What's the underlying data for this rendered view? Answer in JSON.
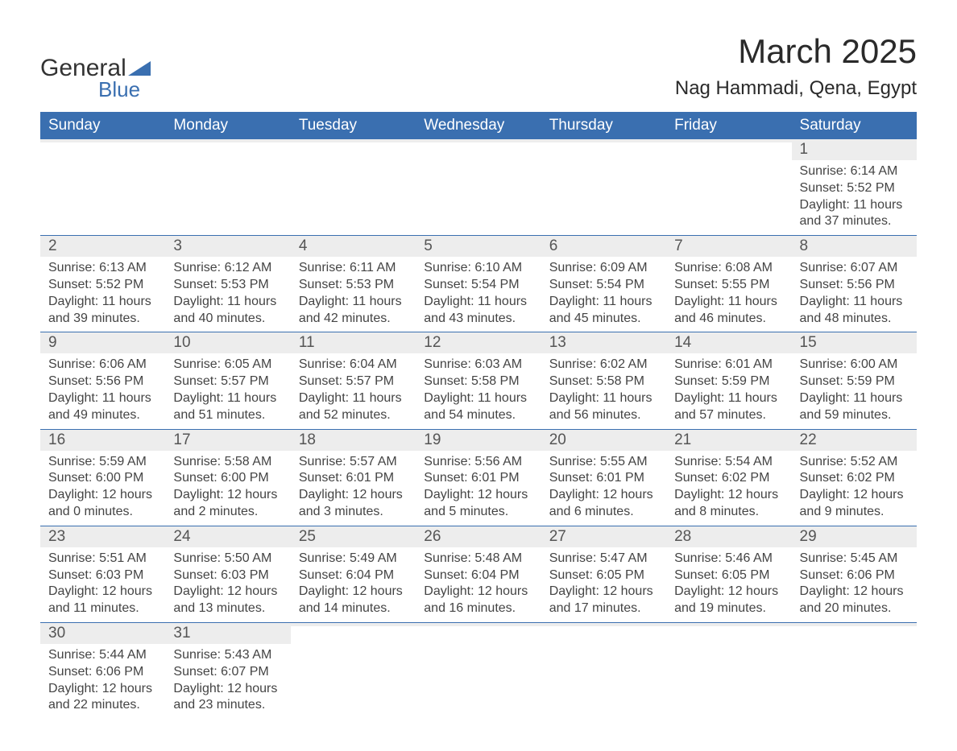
{
  "brand": {
    "name_part1": "General",
    "name_part2": "Blue",
    "logo_color": "#3a6fb0"
  },
  "title": "March 2025",
  "location": "Nag Hammadi, Qena, Egypt",
  "colors": {
    "header_bg": "#3a6fb0",
    "header_text": "#ffffff",
    "daynum_bg": "#ededed",
    "row_border": "#3a6fb0",
    "body_text": "#444444"
  },
  "weekdays": [
    "Sunday",
    "Monday",
    "Tuesday",
    "Wednesday",
    "Thursday",
    "Friday",
    "Saturday"
  ],
  "weeks": [
    [
      {
        "day": "",
        "sunrise": "",
        "sunset": "",
        "daylight": ""
      },
      {
        "day": "",
        "sunrise": "",
        "sunset": "",
        "daylight": ""
      },
      {
        "day": "",
        "sunrise": "",
        "sunset": "",
        "daylight": ""
      },
      {
        "day": "",
        "sunrise": "",
        "sunset": "",
        "daylight": ""
      },
      {
        "day": "",
        "sunrise": "",
        "sunset": "",
        "daylight": ""
      },
      {
        "day": "",
        "sunrise": "",
        "sunset": "",
        "daylight": ""
      },
      {
        "day": "1",
        "sunrise": "Sunrise: 6:14 AM",
        "sunset": "Sunset: 5:52 PM",
        "daylight": "Daylight: 11 hours and 37 minutes."
      }
    ],
    [
      {
        "day": "2",
        "sunrise": "Sunrise: 6:13 AM",
        "sunset": "Sunset: 5:52 PM",
        "daylight": "Daylight: 11 hours and 39 minutes."
      },
      {
        "day": "3",
        "sunrise": "Sunrise: 6:12 AM",
        "sunset": "Sunset: 5:53 PM",
        "daylight": "Daylight: 11 hours and 40 minutes."
      },
      {
        "day": "4",
        "sunrise": "Sunrise: 6:11 AM",
        "sunset": "Sunset: 5:53 PM",
        "daylight": "Daylight: 11 hours and 42 minutes."
      },
      {
        "day": "5",
        "sunrise": "Sunrise: 6:10 AM",
        "sunset": "Sunset: 5:54 PM",
        "daylight": "Daylight: 11 hours and 43 minutes."
      },
      {
        "day": "6",
        "sunrise": "Sunrise: 6:09 AM",
        "sunset": "Sunset: 5:54 PM",
        "daylight": "Daylight: 11 hours and 45 minutes."
      },
      {
        "day": "7",
        "sunrise": "Sunrise: 6:08 AM",
        "sunset": "Sunset: 5:55 PM",
        "daylight": "Daylight: 11 hours and 46 minutes."
      },
      {
        "day": "8",
        "sunrise": "Sunrise: 6:07 AM",
        "sunset": "Sunset: 5:56 PM",
        "daylight": "Daylight: 11 hours and 48 minutes."
      }
    ],
    [
      {
        "day": "9",
        "sunrise": "Sunrise: 6:06 AM",
        "sunset": "Sunset: 5:56 PM",
        "daylight": "Daylight: 11 hours and 49 minutes."
      },
      {
        "day": "10",
        "sunrise": "Sunrise: 6:05 AM",
        "sunset": "Sunset: 5:57 PM",
        "daylight": "Daylight: 11 hours and 51 minutes."
      },
      {
        "day": "11",
        "sunrise": "Sunrise: 6:04 AM",
        "sunset": "Sunset: 5:57 PM",
        "daylight": "Daylight: 11 hours and 52 minutes."
      },
      {
        "day": "12",
        "sunrise": "Sunrise: 6:03 AM",
        "sunset": "Sunset: 5:58 PM",
        "daylight": "Daylight: 11 hours and 54 minutes."
      },
      {
        "day": "13",
        "sunrise": "Sunrise: 6:02 AM",
        "sunset": "Sunset: 5:58 PM",
        "daylight": "Daylight: 11 hours and 56 minutes."
      },
      {
        "day": "14",
        "sunrise": "Sunrise: 6:01 AM",
        "sunset": "Sunset: 5:59 PM",
        "daylight": "Daylight: 11 hours and 57 minutes."
      },
      {
        "day": "15",
        "sunrise": "Sunrise: 6:00 AM",
        "sunset": "Sunset: 5:59 PM",
        "daylight": "Daylight: 11 hours and 59 minutes."
      }
    ],
    [
      {
        "day": "16",
        "sunrise": "Sunrise: 5:59 AM",
        "sunset": "Sunset: 6:00 PM",
        "daylight": "Daylight: 12 hours and 0 minutes."
      },
      {
        "day": "17",
        "sunrise": "Sunrise: 5:58 AM",
        "sunset": "Sunset: 6:00 PM",
        "daylight": "Daylight: 12 hours and 2 minutes."
      },
      {
        "day": "18",
        "sunrise": "Sunrise: 5:57 AM",
        "sunset": "Sunset: 6:01 PM",
        "daylight": "Daylight: 12 hours and 3 minutes."
      },
      {
        "day": "19",
        "sunrise": "Sunrise: 5:56 AM",
        "sunset": "Sunset: 6:01 PM",
        "daylight": "Daylight: 12 hours and 5 minutes."
      },
      {
        "day": "20",
        "sunrise": "Sunrise: 5:55 AM",
        "sunset": "Sunset: 6:01 PM",
        "daylight": "Daylight: 12 hours and 6 minutes."
      },
      {
        "day": "21",
        "sunrise": "Sunrise: 5:54 AM",
        "sunset": "Sunset: 6:02 PM",
        "daylight": "Daylight: 12 hours and 8 minutes."
      },
      {
        "day": "22",
        "sunrise": "Sunrise: 5:52 AM",
        "sunset": "Sunset: 6:02 PM",
        "daylight": "Daylight: 12 hours and 9 minutes."
      }
    ],
    [
      {
        "day": "23",
        "sunrise": "Sunrise: 5:51 AM",
        "sunset": "Sunset: 6:03 PM",
        "daylight": "Daylight: 12 hours and 11 minutes."
      },
      {
        "day": "24",
        "sunrise": "Sunrise: 5:50 AM",
        "sunset": "Sunset: 6:03 PM",
        "daylight": "Daylight: 12 hours and 13 minutes."
      },
      {
        "day": "25",
        "sunrise": "Sunrise: 5:49 AM",
        "sunset": "Sunset: 6:04 PM",
        "daylight": "Daylight: 12 hours and 14 minutes."
      },
      {
        "day": "26",
        "sunrise": "Sunrise: 5:48 AM",
        "sunset": "Sunset: 6:04 PM",
        "daylight": "Daylight: 12 hours and 16 minutes."
      },
      {
        "day": "27",
        "sunrise": "Sunrise: 5:47 AM",
        "sunset": "Sunset: 6:05 PM",
        "daylight": "Daylight: 12 hours and 17 minutes."
      },
      {
        "day": "28",
        "sunrise": "Sunrise: 5:46 AM",
        "sunset": "Sunset: 6:05 PM",
        "daylight": "Daylight: 12 hours and 19 minutes."
      },
      {
        "day": "29",
        "sunrise": "Sunrise: 5:45 AM",
        "sunset": "Sunset: 6:06 PM",
        "daylight": "Daylight: 12 hours and 20 minutes."
      }
    ],
    [
      {
        "day": "30",
        "sunrise": "Sunrise: 5:44 AM",
        "sunset": "Sunset: 6:06 PM",
        "daylight": "Daylight: 12 hours and 22 minutes."
      },
      {
        "day": "31",
        "sunrise": "Sunrise: 5:43 AM",
        "sunset": "Sunset: 6:07 PM",
        "daylight": "Daylight: 12 hours and 23 minutes."
      },
      {
        "day": "",
        "sunrise": "",
        "sunset": "",
        "daylight": ""
      },
      {
        "day": "",
        "sunrise": "",
        "sunset": "",
        "daylight": ""
      },
      {
        "day": "",
        "sunrise": "",
        "sunset": "",
        "daylight": ""
      },
      {
        "day": "",
        "sunrise": "",
        "sunset": "",
        "daylight": ""
      },
      {
        "day": "",
        "sunrise": "",
        "sunset": "",
        "daylight": ""
      }
    ]
  ]
}
